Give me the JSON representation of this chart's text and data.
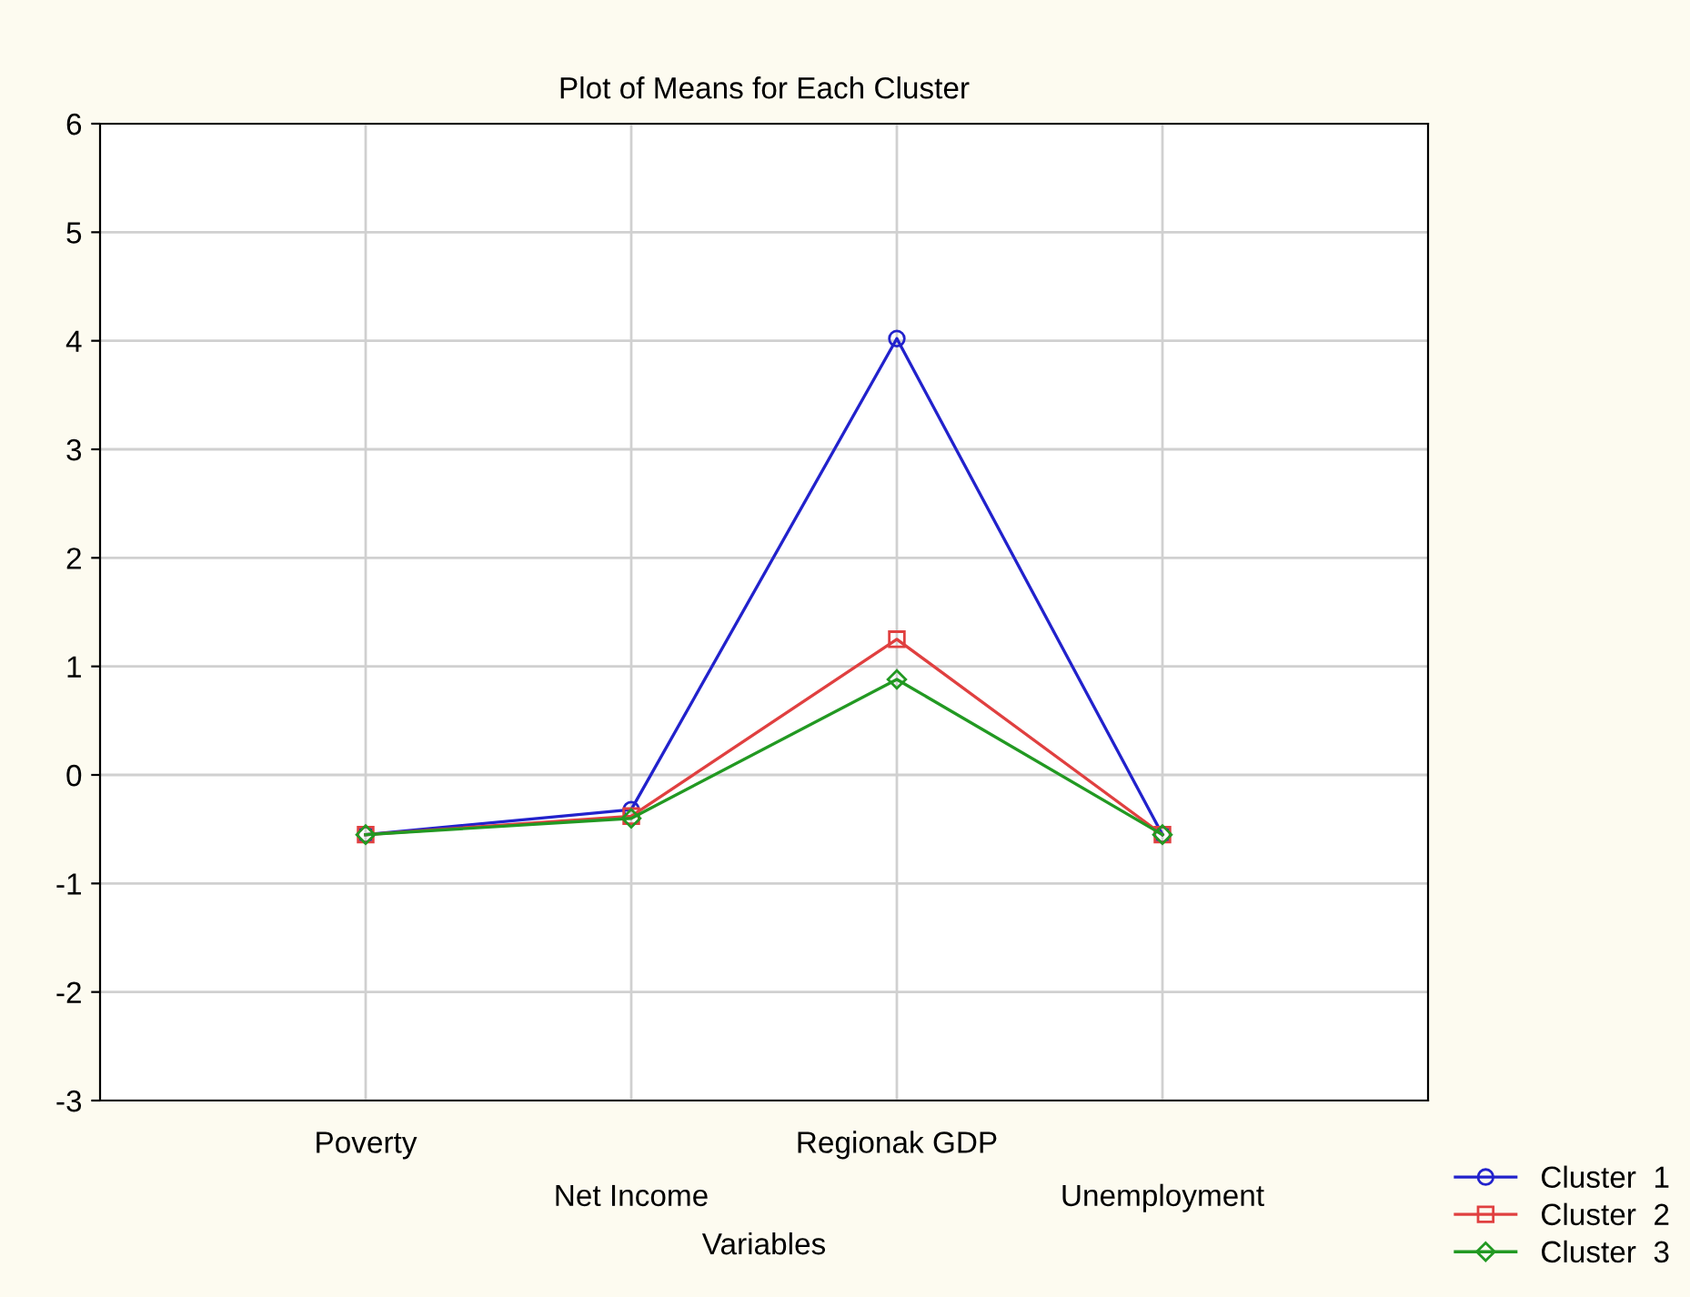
{
  "chart_data": {
    "type": "line",
    "title": "Plot of Means for Each Cluster",
    "xlabel": "Variables",
    "categories": [
      "Poverty",
      "Net Income",
      "Regionak GDP",
      "Unemployment"
    ],
    "series": [
      {
        "name": "Cluster  1",
        "color": "#2222cc",
        "marker": "circle",
        "values": [
          -0.55,
          -0.32,
          4.02,
          -0.55
        ]
      },
      {
        "name": "Cluster  2",
        "color": "#e04040",
        "marker": "square",
        "values": [
          -0.55,
          -0.38,
          1.25,
          -0.55
        ]
      },
      {
        "name": "Cluster  3",
        "color": "#229922",
        "marker": "diamond",
        "values": [
          -0.55,
          -0.4,
          0.88,
          -0.55
        ]
      }
    ],
    "ylim": [
      -3,
      6
    ],
    "yticks": [
      -3,
      -2,
      -1,
      0,
      1,
      2,
      3,
      4,
      5,
      6
    ],
    "grid": true,
    "legend": "bottom right",
    "line_style": "solid"
  }
}
